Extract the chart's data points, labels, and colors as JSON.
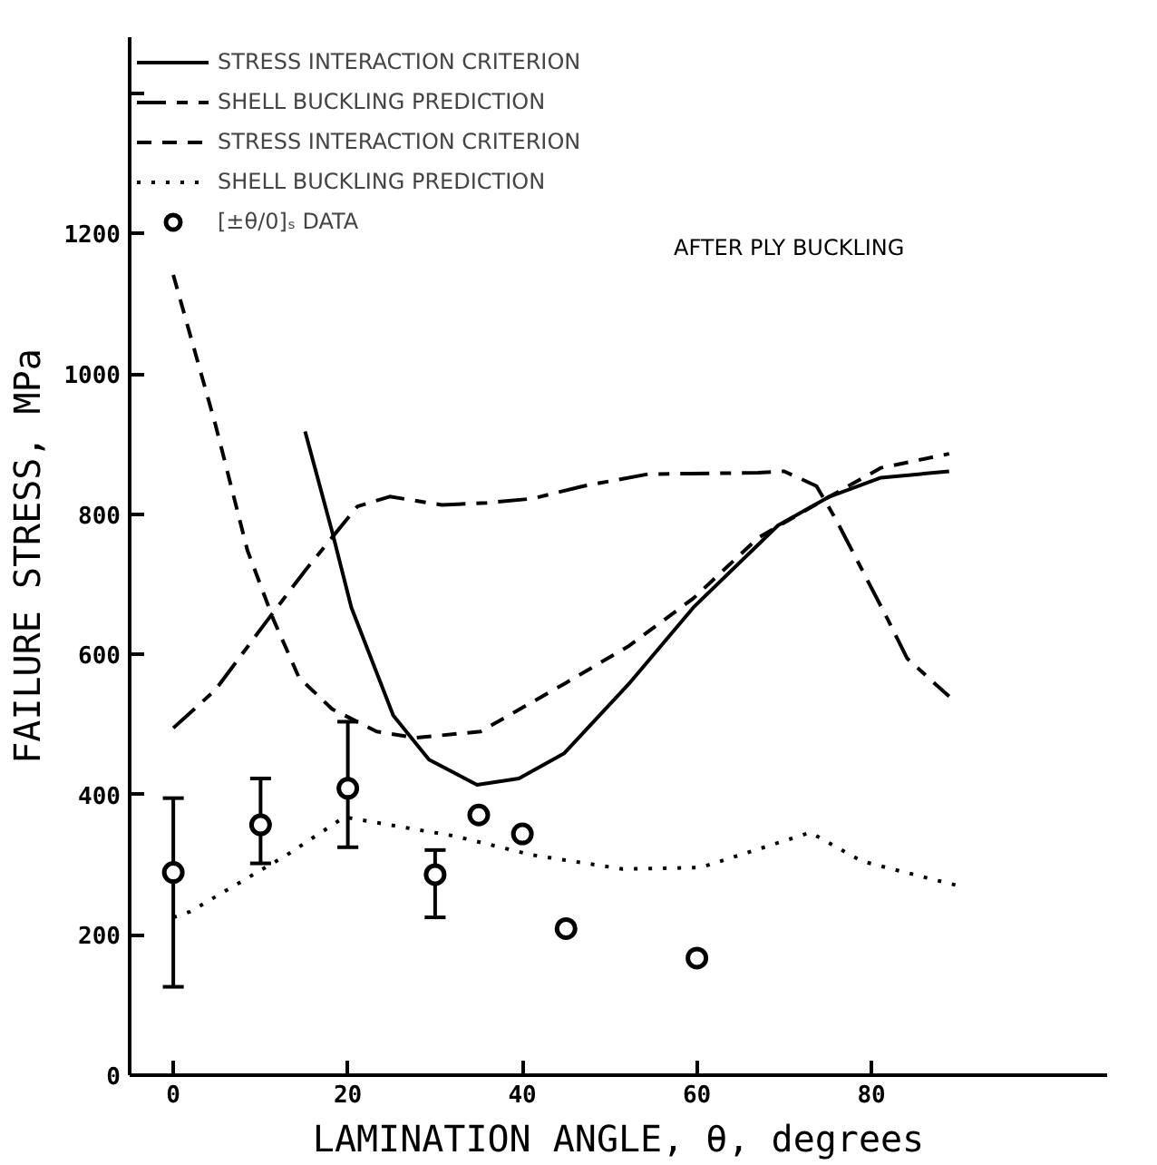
{
  "chart_data": {
    "type": "line",
    "xlabel": "LAMINATION ANGLE, θ, degrees",
    "ylabel": "FAILURE STRESS, MPa",
    "xlim": [
      -5,
      107
    ],
    "ylim": [
      0,
      1480
    ],
    "xticks": [
      0,
      20,
      40,
      60,
      80
    ],
    "yticks": [
      0,
      200,
      400,
      600,
      800,
      1000,
      1200,
      {
        "value": 1400,
        "label": null
      }
    ],
    "grid": false,
    "legend": "top left",
    "annotations": [
      "AFTER PLY BUCKLING"
    ],
    "series": [
      {
        "name": "STRESS INTERACTION CRITERION",
        "color": "#000000",
        "line_style": "solid",
        "x": [
          15.1,
          18.2,
          20.4,
          25.2,
          29.3,
          34.8,
          39.6,
          44.8,
          52.2,
          59.6,
          69.3,
          75.2,
          81.1,
          88.9
        ],
        "values": [
          918,
          775,
          667,
          513,
          450,
          414,
          423,
          459,
          558,
          667,
          784,
          825,
          852,
          861
        ]
      },
      {
        "name": "SHELL BUCKLING PREDICTION",
        "color": "#000000",
        "line_style": "dashdot",
        "x": [
          0,
          4.8,
          10.8,
          15.2,
          21.1,
          24.8,
          30.8,
          35.9,
          41.1,
          47,
          54.4,
          67,
          70,
          73.7,
          75.9,
          81.9,
          84.1,
          88.9
        ],
        "values": [
          495,
          549,
          649,
          721,
          811,
          825,
          813,
          816,
          822,
          840,
          857,
          859,
          861,
          840,
          793,
          649,
          594,
          540
        ]
      },
      {
        "name": "STRESS INTERACTION CRITERION",
        "color": "#000000",
        "line_style": "dashed",
        "x": [
          0,
          4.8,
          8.5,
          11.5,
          14.4,
          18.2,
          23.3,
          27.8,
          35.2,
          44.8,
          52.2,
          59.6,
          67,
          75.2,
          81.1,
          88.9
        ],
        "values": [
          1141,
          929,
          748,
          649,
          567,
          522,
          490,
          481,
          490,
          558,
          612,
          680,
          766,
          825,
          866,
          886
        ]
      },
      {
        "name": "SHELL BUCKLING PREDICTION",
        "color": "#000000",
        "line_style": "dotted",
        "x": [
          0,
          1.9,
          13,
          19.6,
          32.2,
          41.1,
          51.5,
          60.4,
          73,
          78.9,
          87.4,
          90
        ],
        "values": [
          225,
          233,
          314,
          368,
          341,
          314,
          294,
          296,
          346,
          305,
          278,
          270
        ]
      },
      {
        "name": "[±θ/0]ₛ DATA",
        "type": "scatter",
        "marker": "circle",
        "color": "#000000",
        "x": [
          0,
          10,
          20,
          30,
          35,
          40,
          45,
          60
        ],
        "values": [
          289,
          357,
          409,
          286,
          371,
          344,
          209,
          167
        ],
        "errors": [
          [
            126,
            395
          ],
          [
            302,
            423
          ],
          [
            325,
            504
          ],
          [
            225,
            321
          ],
          null,
          null,
          null,
          null
        ]
      }
    ]
  }
}
